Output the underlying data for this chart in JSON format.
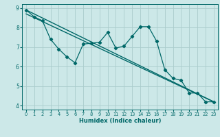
{
  "xlabel": "Humidex (Indice chaleur)",
  "bg_color": "#cce8e8",
  "line_color": "#006868",
  "grid_color": "#aacccc",
  "xlim": [
    -0.5,
    23.5
  ],
  "ylim": [
    3.8,
    9.2
  ],
  "yticks": [
    4,
    5,
    6,
    7,
    8,
    9
  ],
  "xticks": [
    0,
    1,
    2,
    3,
    4,
    5,
    6,
    7,
    8,
    9,
    10,
    11,
    12,
    13,
    14,
    15,
    16,
    17,
    18,
    19,
    20,
    21,
    22,
    23
  ],
  "line1_x": [
    0,
    1,
    2,
    3,
    4,
    5,
    6,
    7,
    8,
    9,
    10,
    11,
    12,
    13,
    14,
    15,
    16,
    17,
    18,
    19,
    20,
    21,
    22,
    23
  ],
  "line1_y": [
    8.9,
    8.55,
    8.35,
    7.4,
    6.9,
    6.5,
    6.2,
    7.15,
    7.2,
    7.25,
    7.75,
    6.95,
    7.05,
    7.55,
    8.05,
    8.05,
    7.3,
    5.85,
    5.4,
    5.3,
    4.65,
    4.65,
    4.2,
    4.2
  ],
  "line2_x": [
    0,
    23
  ],
  "line2_y": [
    8.9,
    4.2
  ],
  "line3_x": [
    0,
    23
  ],
  "line3_y": [
    8.7,
    4.2
  ],
  "xlabel_fontsize": 6.0,
  "tick_fontsize_x": 4.8,
  "tick_fontsize_y": 5.5
}
